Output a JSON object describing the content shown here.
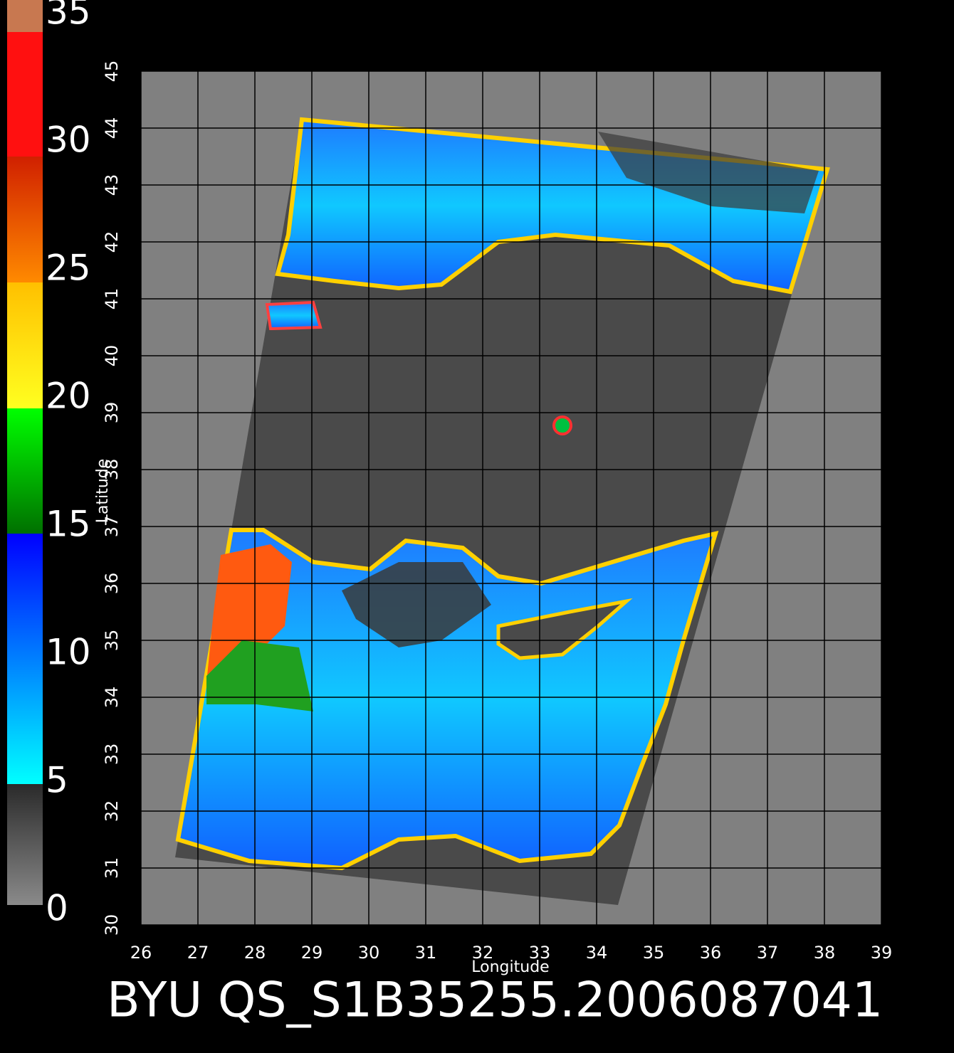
{
  "chart_data": {
    "type": "map",
    "title": "BYU QS_S1B35255.2006087041",
    "xlabel": "Longitude",
    "ylabel": "Latitude",
    "xlim": [
      26,
      39
    ],
    "ylim": [
      30,
      45
    ],
    "xticks": [
      26,
      27,
      28,
      29,
      30,
      31,
      32,
      33,
      34,
      35,
      36,
      37,
      38,
      39
    ],
    "yticks": [
      30,
      31,
      32,
      33,
      34,
      35,
      36,
      37,
      38,
      39,
      40,
      41,
      42,
      43,
      44,
      45
    ],
    "grid": true,
    "colorbar": {
      "lim": [
        0,
        35
      ],
      "ticks": [
        0,
        5,
        10,
        15,
        20,
        25,
        30,
        35
      ]
    }
  }
}
